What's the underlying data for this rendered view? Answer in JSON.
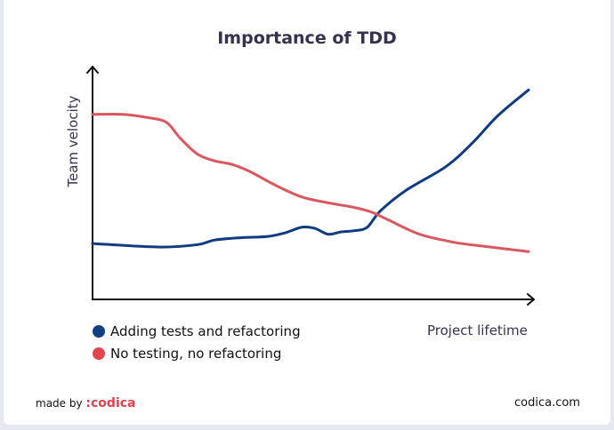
{
  "chart_data": {
    "type": "line",
    "title": "Importance of TDD",
    "xlabel": "Project lifetime",
    "ylabel": "Team velocity",
    "xlim": [
      0,
      100
    ],
    "ylim": [
      0,
      100
    ],
    "grid": false,
    "legend_placement": "bottom-left",
    "series": [
      {
        "name": "Adding tests and refactoring",
        "color": "#0f3b80",
        "x": [
          0,
          15,
          24,
          28,
          34,
          40,
          44,
          48,
          51,
          54,
          57,
          60,
          63,
          66,
          72,
          81,
          87,
          93,
          100
        ],
        "y": [
          24,
          22.5,
          23.5,
          25.5,
          26.5,
          27,
          28.5,
          31,
          30.5,
          28,
          29,
          29.5,
          31,
          38,
          47,
          57,
          67,
          79,
          90
        ]
      },
      {
        "name": "No testing, no refactoring",
        "color": "#d9585f",
        "x": [
          0,
          7,
          13,
          17,
          20,
          24,
          28,
          32,
          36,
          42,
          48,
          54,
          60,
          64,
          68,
          75,
          83,
          89,
          100
        ],
        "y": [
          79.5,
          79.5,
          78,
          76,
          69.5,
          62.5,
          59.5,
          58,
          55,
          49,
          44,
          41.5,
          39.5,
          37.5,
          34,
          28,
          24.5,
          23,
          20.5
        ]
      }
    ]
  },
  "legend_dot_colors": {
    "blue": "#123f82",
    "red": "#e0474c"
  },
  "footer": {
    "made_by": "made by",
    "brand": ":codica",
    "site": "codica.com"
  }
}
